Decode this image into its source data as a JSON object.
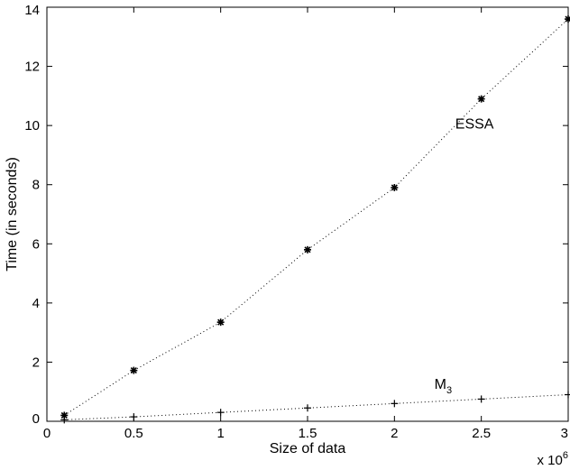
{
  "chart_data": {
    "type": "line",
    "title": "",
    "xlabel": "Size of data",
    "ylabel": "Time (in seconds)",
    "x_multiplier_label": "x 10",
    "x_multiplier_exponent": "6",
    "xlim": [
      0,
      3
    ],
    "ylim": [
      0,
      14
    ],
    "xticks": [
      0,
      0.5,
      1,
      1.5,
      2,
      2.5,
      3
    ],
    "xtick_labels": [
      "0",
      "0.5",
      "1",
      "1.5",
      "2",
      "2.5",
      "3"
    ],
    "yticks": [
      0,
      2,
      4,
      6,
      8,
      10,
      12,
      14
    ],
    "ytick_labels": [
      "0",
      "2",
      "4",
      "6",
      "8",
      "10",
      "12",
      "14"
    ],
    "grid": false,
    "series": [
      {
        "marker": "asterisk",
        "x": [
          0.1,
          0.5,
          1,
          1.5,
          2,
          2.5,
          3
        ],
        "y": [
          0.2,
          1.72,
          3.35,
          5.8,
          7.9,
          10.9,
          13.6
        ]
      },
      {
        "marker": "plus",
        "x": [
          0.1,
          0.5,
          1,
          1.5,
          2,
          2.5,
          3
        ],
        "y": [
          0.05,
          0.15,
          0.3,
          0.45,
          0.6,
          0.75,
          0.9
        ]
      }
    ],
    "annotations": [
      {
        "text": "ESSA",
        "x": 2.35,
        "y": 9.9
      },
      {
        "text": "M",
        "subscript": "3",
        "x": 2.23,
        "y": 1.1
      }
    ]
  }
}
